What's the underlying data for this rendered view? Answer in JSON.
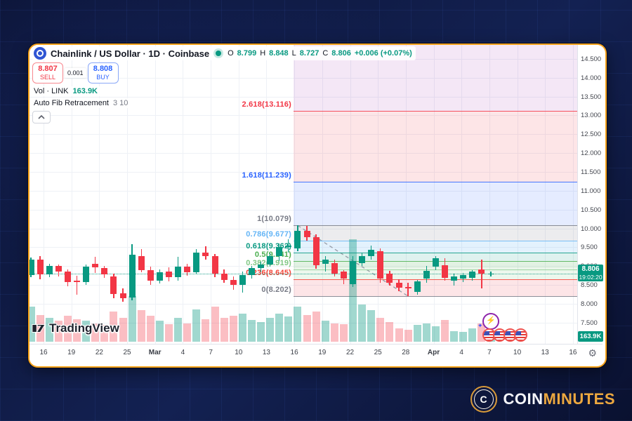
{
  "colors": {
    "up": "#089981",
    "down": "#f23645",
    "vol_up": "rgba(8,153,129,0.38)",
    "vol_down": "rgba(242,54,69,0.32)",
    "accent_border": "#f7a21a",
    "badge": "#089981",
    "sell": "#f23645",
    "buy": "#2962ff",
    "baseline": "#9aa0ab"
  },
  "header": {
    "title": "Chainlink / US Dollar · 1D · Coinbase",
    "ohlc": [
      {
        "k": "O",
        "v": "8.799"
      },
      {
        "k": "H",
        "v": "8.848"
      },
      {
        "k": "L",
        "v": "8.727"
      },
      {
        "k": "C",
        "v": "8.806"
      }
    ],
    "change": "+0.006 (+0.07%)",
    "sell": {
      "price": "8.807",
      "label": "SELL"
    },
    "spread": "0.001",
    "buy": {
      "price": "8.808",
      "label": "BUY"
    },
    "vol_row": {
      "label": "Vol · LINK",
      "value": "163.9K"
    },
    "indicator_row": {
      "name": "Auto Fib Retracement",
      "params": "3 10"
    }
  },
  "watermark": "TradingView",
  "brand": {
    "letter": "C",
    "coin": "COIN",
    "minutes": "MINUTES"
  },
  "chart_data": {
    "type": "candlestick",
    "symbol": "Chainlink / US Dollar",
    "interval": "1D",
    "exchange": "Coinbase",
    "ylim": [
      6.99,
      14.87
    ],
    "grid": true,
    "price_ticks": [
      "14.500",
      "14.000",
      "13.500",
      "13.000",
      "12.500",
      "12.000",
      "11.500",
      "11.000",
      "10.500",
      "10.000",
      "9.500",
      "9.000",
      "8.500",
      "8.000",
      "7.500"
    ],
    "time_ticks": [
      {
        "t": "16"
      },
      {
        "t": "19"
      },
      {
        "t": "22"
      },
      {
        "t": "25"
      },
      {
        "t": "Mar",
        "bold": true
      },
      {
        "t": "4"
      },
      {
        "t": "7"
      },
      {
        "t": "10"
      },
      {
        "t": "13"
      },
      {
        "t": "16"
      },
      {
        "t": "19"
      },
      {
        "t": "22"
      },
      {
        "t": "25"
      },
      {
        "t": "28"
      },
      {
        "t": "Apr",
        "bold": true
      },
      {
        "t": "4"
      },
      {
        "t": "7"
      },
      {
        "t": "10"
      },
      {
        "t": "13"
      },
      {
        "t": "16"
      }
    ],
    "candles_format": [
      "open",
      "high",
      "low",
      "close",
      "volume_frac"
    ],
    "candles": [
      [
        8.76,
        9.22,
        8.7,
        9.17,
        0.8
      ],
      [
        9.17,
        9.26,
        8.65,
        8.78,
        0.62
      ],
      [
        8.78,
        9.06,
        8.7,
        9.0,
        0.55
      ],
      [
        9.0,
        9.04,
        8.72,
        8.85,
        0.48
      ],
      [
        8.85,
        8.92,
        8.46,
        8.58,
        0.6
      ],
      [
        8.62,
        8.75,
        8.24,
        8.58,
        0.52
      ],
      [
        8.58,
        9.05,
        8.5,
        8.99,
        0.48
      ],
      [
        9.07,
        9.25,
        8.82,
        8.96,
        0.42
      ],
      [
        8.94,
        9.01,
        8.69,
        8.77,
        0.38
      ],
      [
        8.73,
        8.8,
        8.14,
        8.25,
        0.7
      ],
      [
        8.28,
        8.41,
        8.05,
        8.14,
        0.55
      ],
      [
        8.16,
        9.58,
        8.1,
        9.3,
        1.05
      ],
      [
        9.27,
        9.45,
        8.84,
        8.9,
        0.72
      ],
      [
        8.9,
        8.98,
        8.5,
        8.62,
        0.6
      ],
      [
        8.62,
        8.92,
        8.54,
        8.84,
        0.48
      ],
      [
        8.86,
        8.96,
        8.6,
        8.7,
        0.4
      ],
      [
        8.7,
        9.25,
        8.62,
        8.98,
        0.55
      ],
      [
        8.98,
        9.06,
        8.74,
        8.83,
        0.42
      ],
      [
        8.83,
        9.46,
        8.78,
        9.36,
        0.75
      ],
      [
        9.36,
        9.53,
        9.18,
        9.26,
        0.52
      ],
      [
        9.26,
        9.33,
        8.7,
        8.8,
        0.8
      ],
      [
        8.8,
        8.92,
        8.56,
        8.64,
        0.55
      ],
      [
        8.64,
        8.72,
        8.38,
        8.5,
        0.6
      ],
      [
        8.5,
        8.86,
        8.3,
        8.76,
        0.65
      ],
      [
        8.76,
        9.0,
        8.66,
        8.94,
        0.5
      ],
      [
        8.94,
        9.12,
        8.84,
        9.04,
        0.45
      ],
      [
        9.04,
        9.34,
        8.98,
        9.27,
        0.55
      ],
      [
        9.27,
        9.6,
        9.14,
        9.5,
        0.65
      ],
      [
        9.5,
        9.72,
        9.36,
        9.55,
        0.58
      ],
      [
        9.46,
        10.08,
        9.4,
        9.94,
        0.8
      ],
      [
        9.94,
        10.06,
        9.68,
        9.76,
        0.62
      ],
      [
        9.77,
        9.85,
        8.92,
        9.02,
        0.7
      ],
      [
        9.05,
        9.26,
        8.86,
        9.17,
        0.48
      ],
      [
        9.08,
        9.17,
        8.72,
        8.8,
        0.42
      ],
      [
        8.85,
        8.9,
        8.52,
        8.66,
        0.4
      ],
      [
        8.52,
        9.26,
        8.44,
        9.13,
        2.35
      ],
      [
        9.08,
        9.36,
        9.0,
        9.26,
        0.85
      ],
      [
        9.26,
        9.55,
        9.18,
        9.44,
        0.72
      ],
      [
        9.4,
        9.47,
        8.55,
        8.66,
        0.55
      ],
      [
        8.8,
        8.88,
        8.48,
        8.56,
        0.45
      ],
      [
        8.56,
        8.66,
        8.34,
        8.43,
        0.3
      ],
      [
        8.45,
        8.56,
        8.2,
        8.41,
        0.28
      ],
      [
        8.31,
        8.63,
        8.24,
        8.6,
        0.38
      ],
      [
        8.66,
        9.0,
        8.55,
        8.88,
        0.42
      ],
      [
        8.98,
        9.26,
        8.9,
        9.21,
        0.36
      ],
      [
        9.02,
        9.21,
        8.62,
        8.68,
        0.5
      ],
      [
        8.61,
        8.8,
        8.48,
        8.72,
        0.25
      ],
      [
        8.66,
        8.82,
        8.58,
        8.77,
        0.22
      ],
      [
        8.68,
        8.9,
        8.62,
        8.86,
        0.3
      ],
      [
        8.92,
        9.17,
        8.4,
        8.8,
        0.42
      ],
      [
        8.799,
        8.848,
        8.727,
        8.806,
        0.2
      ]
    ],
    "fib": {
      "name": "Auto Fib Retracement",
      "baseline": {
        "from_index": 29,
        "from_price": 10.079,
        "to_index": 41,
        "to_price": 8.202
      },
      "start_index": 29,
      "levels": [
        {
          "label": "2.618(13.116)",
          "price": 13.116,
          "color": "#f23645"
        },
        {
          "label": "1.618(11.239)",
          "price": 11.239,
          "color": "#2962ff"
        },
        {
          "label": "1(10.079)",
          "price": 10.079,
          "color": "#787b86"
        },
        {
          "label": "0.786(9.677)",
          "price": 9.677,
          "color": "#64b5f6"
        },
        {
          "label": "0.618(9.362)",
          "price": 9.362,
          "color": "#089981"
        },
        {
          "label": "0.5(9.141)",
          "price": 9.141,
          "color": "#4caf50"
        },
        {
          "label": "0.382(8.919)",
          "price": 8.919,
          "color": "#81c784"
        },
        {
          "label": "0.236(8.645)",
          "price": 8.645,
          "color": "#f44336"
        },
        {
          "label": "0(8.202)",
          "price": 8.202,
          "color": "#787b86"
        }
      ],
      "bands": [
        {
          "top": 14.87,
          "bottom": 13.116,
          "color": "rgba(156,39,176,0.11)"
        },
        {
          "top": 13.116,
          "bottom": 11.239,
          "color": "rgba(242,54,69,0.13)"
        },
        {
          "top": 11.239,
          "bottom": 10.079,
          "color": "rgba(41,98,255,0.12)"
        },
        {
          "top": 10.079,
          "bottom": 9.677,
          "color": "rgba(120,123,134,0.14)"
        },
        {
          "top": 9.677,
          "bottom": 9.362,
          "color": "rgba(100,181,246,0.18)"
        },
        {
          "top": 9.362,
          "bottom": 9.141,
          "color": "rgba(8,153,129,0.13)"
        },
        {
          "top": 9.141,
          "bottom": 8.919,
          "color": "rgba(76,175,80,0.16)"
        },
        {
          "top": 8.919,
          "bottom": 8.645,
          "color": "rgba(129,199,132,0.15)"
        },
        {
          "top": 8.645,
          "bottom": 8.202,
          "color": "rgba(242,54,69,0.13)"
        }
      ]
    },
    "last_price": {
      "value": "8.806",
      "time": "19:02:20",
      "price": 8.806
    },
    "volume_badge": "163.9K",
    "stickers": {
      "lightning_icon": true,
      "flag_count": 4
    }
  }
}
